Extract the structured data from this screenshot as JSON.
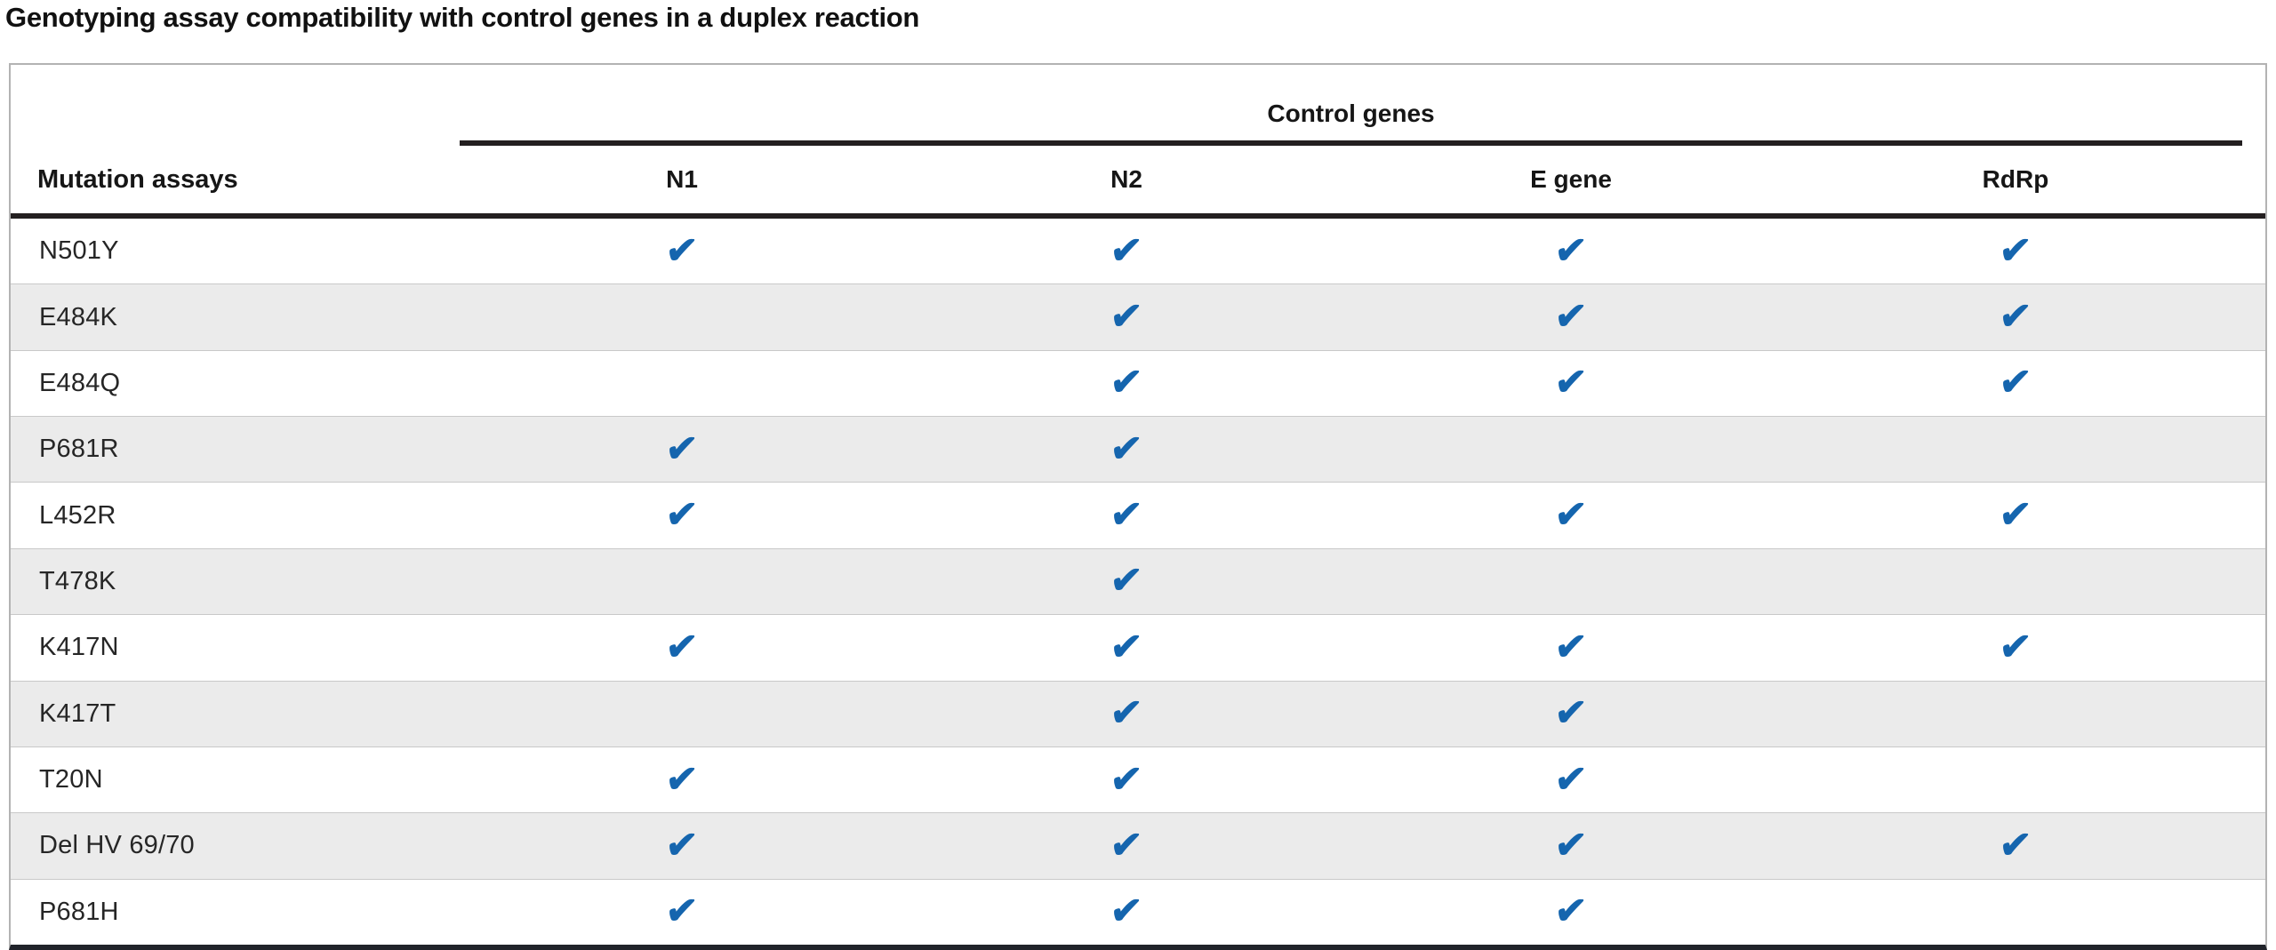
{
  "chart_data": {
    "type": "table",
    "title": "Genotyping assay compatibility with control genes in a duplex reaction",
    "group_header": "Control genes",
    "row_header": "Mutation assays",
    "columns": [
      "N1",
      "N2",
      "E gene",
      "RdRp"
    ],
    "rows": [
      {
        "assay": "N501Y",
        "compatible": [
          true,
          true,
          true,
          true
        ]
      },
      {
        "assay": "E484K",
        "compatible": [
          false,
          true,
          true,
          true
        ]
      },
      {
        "assay": "E484Q",
        "compatible": [
          false,
          true,
          true,
          true
        ]
      },
      {
        "assay": "P681R",
        "compatible": [
          true,
          true,
          false,
          false
        ]
      },
      {
        "assay": "L452R",
        "compatible": [
          true,
          true,
          true,
          true
        ]
      },
      {
        "assay": "T478K",
        "compatible": [
          false,
          true,
          false,
          false
        ]
      },
      {
        "assay": "K417N",
        "compatible": [
          true,
          true,
          true,
          true
        ]
      },
      {
        "assay": "K417T",
        "compatible": [
          false,
          true,
          true,
          false
        ]
      },
      {
        "assay": "T20N",
        "compatible": [
          true,
          true,
          true,
          false
        ]
      },
      {
        "assay": "Del HV 69/70",
        "compatible": [
          true,
          true,
          true,
          true
        ]
      },
      {
        "assay": "P681H",
        "compatible": [
          true,
          true,
          true,
          false
        ]
      }
    ],
    "check_symbol": "✔",
    "colors": {
      "check": "#1565ae",
      "stripe": "#ebebeb",
      "header_rule": "#231f20",
      "outer_border": "#b3b3b3",
      "bottom_border": "#20232a"
    },
    "legend_position": "none",
    "grid": "row-stripes"
  }
}
